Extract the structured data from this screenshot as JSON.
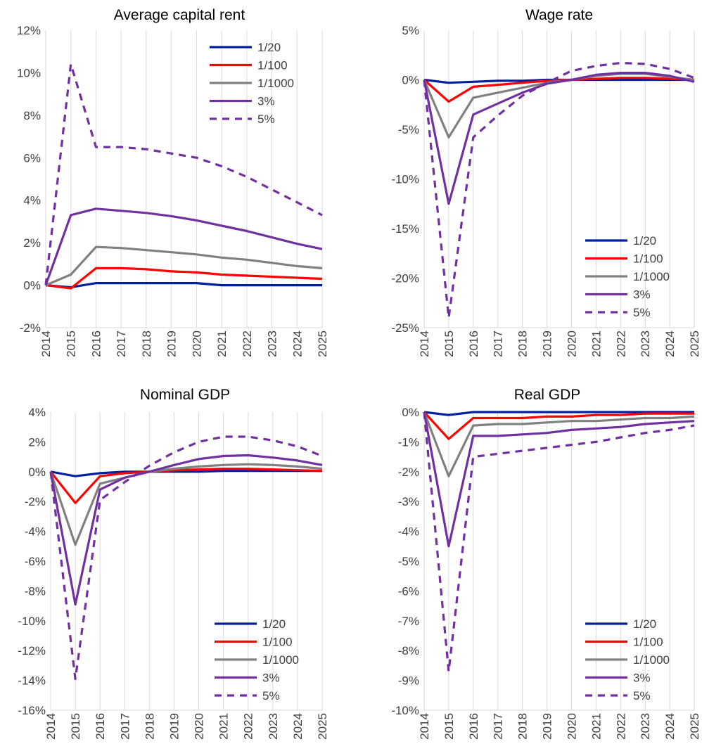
{
  "colors": {
    "1/20": "#00209f",
    "1/100": "#ff0000",
    "1/1000": "#808080",
    "3%": "#7030a0",
    "5%": "#7030a0"
  },
  "chart_data": [
    {
      "type": "line",
      "title": "Average capital rent",
      "x": [
        "2014",
        "2015",
        "2016",
        "2017",
        "2018",
        "2019",
        "2020",
        "2021",
        "2022",
        "2023",
        "2024",
        "2025"
      ],
      "ylim": [
        -2,
        12
      ],
      "y_step": 2,
      "y_ticks": [
        "-2%",
        "0%",
        "2%",
        "4%",
        "6%",
        "8%",
        "10%",
        "12%"
      ],
      "legend_position": "top-right",
      "grid": "vertical",
      "series": [
        {
          "name": "1/20",
          "style": "solid",
          "values": [
            0,
            -0.1,
            0.1,
            0.1,
            0.1,
            0.1,
            0.1,
            0.0,
            0.0,
            0.0,
            0.0,
            0.0
          ]
        },
        {
          "name": "1/100",
          "style": "solid",
          "values": [
            0,
            -0.15,
            0.8,
            0.8,
            0.75,
            0.65,
            0.6,
            0.5,
            0.45,
            0.4,
            0.35,
            0.3
          ]
        },
        {
          "name": "1/1000",
          "style": "solid",
          "values": [
            0,
            0.5,
            1.8,
            1.75,
            1.65,
            1.55,
            1.45,
            1.3,
            1.2,
            1.05,
            0.9,
            0.8
          ]
        },
        {
          "name": "3%",
          "style": "solid",
          "values": [
            0,
            3.3,
            3.6,
            3.5,
            3.4,
            3.25,
            3.05,
            2.8,
            2.55,
            2.25,
            1.95,
            1.7
          ]
        },
        {
          "name": "5%",
          "style": "dashed",
          "values": [
            0,
            10.4,
            6.5,
            6.5,
            6.4,
            6.2,
            6.0,
            5.6,
            5.1,
            4.5,
            3.9,
            3.3
          ]
        }
      ]
    },
    {
      "type": "line",
      "title": "Wage rate",
      "x": [
        "2014",
        "2015",
        "2016",
        "2017",
        "2018",
        "2019",
        "2020",
        "2021",
        "2022",
        "2023",
        "2024",
        "2025"
      ],
      "ylim": [
        -25,
        5
      ],
      "y_step": 5,
      "y_ticks": [
        "-25%",
        "-20%",
        "-15%",
        "-10%",
        "-5%",
        "0%",
        "5%"
      ],
      "legend_position": "bottom-right",
      "grid": "vertical",
      "series": [
        {
          "name": "1/20",
          "style": "solid",
          "values": [
            0,
            -0.3,
            -0.2,
            -0.1,
            -0.1,
            0,
            0,
            0,
            0,
            0,
            0,
            0
          ]
        },
        {
          "name": "1/100",
          "style": "solid",
          "values": [
            0,
            -2.2,
            -0.7,
            -0.5,
            -0.3,
            -0.1,
            0,
            0.1,
            0.2,
            0.2,
            0.1,
            0
          ]
        },
        {
          "name": "1/1000",
          "style": "solid",
          "values": [
            0,
            -5.8,
            -1.8,
            -1.3,
            -0.8,
            -0.3,
            0,
            0.4,
            0.6,
            0.6,
            0.3,
            0
          ]
        },
        {
          "name": "3%",
          "style": "solid",
          "values": [
            0,
            -12.5,
            -3.5,
            -2.4,
            -1.3,
            -0.4,
            0,
            0.5,
            0.7,
            0.7,
            0.4,
            -0.2
          ]
        },
        {
          "name": "5%",
          "style": "dashed",
          "values": [
            0,
            -24,
            -5.8,
            -3.6,
            -1.6,
            -0.3,
            0.9,
            1.4,
            1.7,
            1.6,
            1.1,
            0.2
          ]
        }
      ]
    },
    {
      "type": "line",
      "title": "Nominal GDP",
      "x": [
        "2014",
        "2015",
        "2016",
        "2017",
        "2018",
        "2019",
        "2020",
        "2021",
        "2022",
        "2023",
        "2024",
        "2025"
      ],
      "ylim": [
        -16,
        4
      ],
      "y_step": 2,
      "y_ticks": [
        "-16%",
        "-14%",
        "-12%",
        "-10%",
        "-8%",
        "-6%",
        "-4%",
        "-2%",
        "0%",
        "2%",
        "4%"
      ],
      "legend_position": "bottom-right",
      "grid": "vertical",
      "series": [
        {
          "name": "1/20",
          "style": "solid",
          "values": [
            0,
            -0.3,
            -0.1,
            0,
            0,
            0,
            0,
            0.05,
            0.05,
            0.05,
            0.05,
            0.05
          ]
        },
        {
          "name": "1/100",
          "style": "solid",
          "values": [
            0,
            -2.1,
            -0.3,
            -0.1,
            0,
            0.1,
            0.15,
            0.2,
            0.2,
            0.15,
            0.1,
            0.05
          ]
        },
        {
          "name": "1/1000",
          "style": "solid",
          "values": [
            0,
            -4.9,
            -0.8,
            -0.4,
            0,
            0.2,
            0.35,
            0.45,
            0.5,
            0.45,
            0.35,
            0.2
          ]
        },
        {
          "name": "3%",
          "style": "solid",
          "values": [
            0,
            -8.9,
            -1.2,
            -0.4,
            0,
            0.45,
            0.85,
            1.05,
            1.1,
            0.95,
            0.75,
            0.45
          ]
        },
        {
          "name": "5%",
          "style": "dashed",
          "values": [
            0,
            -13.9,
            -1.9,
            -0.7,
            0.4,
            1.3,
            2.0,
            2.35,
            2.35,
            2.1,
            1.7,
            1.05
          ]
        }
      ]
    },
    {
      "type": "line",
      "title": "Real GDP",
      "x": [
        "2014",
        "2015",
        "2016",
        "2017",
        "2018",
        "2019",
        "2020",
        "2021",
        "2022",
        "2023",
        "2024",
        "2025"
      ],
      "ylim": [
        -10,
        0
      ],
      "y_step": 1,
      "y_ticks": [
        "-10%",
        "-9%",
        "-8%",
        "-7%",
        "-6%",
        "-5%",
        "-4%",
        "-3%",
        "-2%",
        "-1%",
        "0%"
      ],
      "legend_position": "bottom-right",
      "grid": "vertical",
      "series": [
        {
          "name": "1/20",
          "style": "solid",
          "values": [
            0,
            -0.1,
            0,
            0,
            0,
            0,
            0,
            0,
            0,
            0,
            0,
            0
          ]
        },
        {
          "name": "1/100",
          "style": "solid",
          "values": [
            0,
            -0.9,
            -0.2,
            -0.2,
            -0.2,
            -0.15,
            -0.15,
            -0.1,
            -0.1,
            -0.05,
            -0.05,
            -0.05
          ]
        },
        {
          "name": "1/1000",
          "style": "solid",
          "values": [
            0,
            -2.15,
            -0.45,
            -0.4,
            -0.4,
            -0.35,
            -0.3,
            -0.3,
            -0.25,
            -0.2,
            -0.2,
            -0.15
          ]
        },
        {
          "name": "3%",
          "style": "solid",
          "values": [
            0,
            -4.5,
            -0.8,
            -0.8,
            -0.75,
            -0.7,
            -0.6,
            -0.55,
            -0.5,
            -0.4,
            -0.35,
            -0.3
          ]
        },
        {
          "name": "5%",
          "style": "dashed",
          "values": [
            0,
            -8.7,
            -1.5,
            -1.4,
            -1.3,
            -1.2,
            -1.1,
            -1.0,
            -0.85,
            -0.7,
            -0.6,
            -0.45
          ]
        }
      ]
    }
  ]
}
